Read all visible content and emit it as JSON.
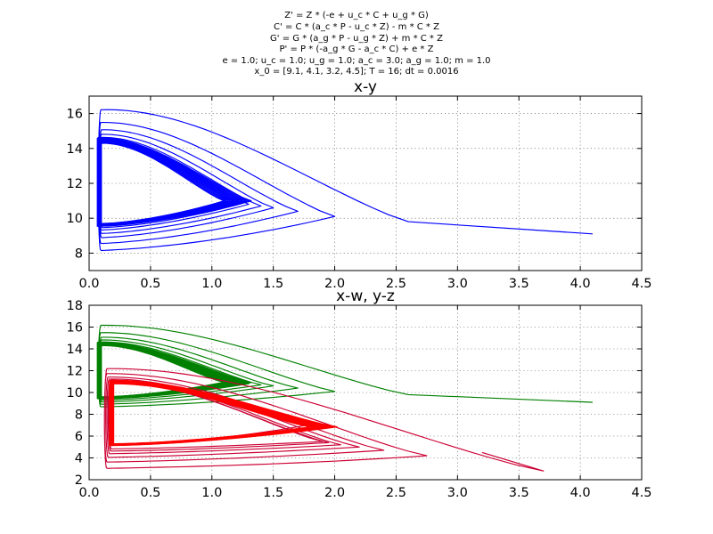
{
  "figure": {
    "equations": [
      "Z' = Z * (-e + u_c * C + u_g * G)",
      "C' = C * (a_c * P - u_c * Z) - m * C * Z",
      "G' = G * (a_g * P - u_g * Z) + m * C * Z",
      "P' = P * (-a_g * G - a_c * C) + e * Z",
      "e = 1.0; u_c = 1.0; u_g = 1.0; a_c = 3.0; a_g = 1.0; m = 1.0",
      "x_0 = [9.1, 4.1, 3.2, 4.5]; T = 16; dt = 0.0016"
    ]
  },
  "chart_data": [
    {
      "type": "line",
      "title": "x-y",
      "xlim": [
        0.0,
        4.5
      ],
      "ylim": [
        7,
        17
      ],
      "xticks": [
        "0.0",
        "0.5",
        "1.0",
        "1.5",
        "2.0",
        "2.5",
        "3.0",
        "3.5",
        "4.0",
        "4.5"
      ],
      "yticks": [
        "8",
        "10",
        "12",
        "14",
        "16"
      ],
      "grid": true,
      "series": [
        {
          "color": "#0000ff",
          "attractor": {
            "x_min": 0.1,
            "x_max": 1.1,
            "y_min": 9.7,
            "y_max": 14.3
          },
          "trajectory": {
            "start": [
              4.1,
              9.1
            ],
            "loops": [
              {
                "x_right": 2.6,
                "y_right": 9.8,
                "x_left": 0.1,
                "y_top": 16.6,
                "y_bottom": 7.9
              },
              {
                "x_right": 2.0,
                "y_right": 10.1,
                "x_left": 0.09,
                "y_top": 15.7,
                "y_bottom": 8.3
              },
              {
                "x_right": 1.7,
                "y_right": 10.4,
                "x_left": 0.1,
                "y_top": 15.2,
                "y_bottom": 8.7
              },
              {
                "x_right": 1.5,
                "y_right": 10.6,
                "x_left": 0.1,
                "y_top": 14.9,
                "y_bottom": 9.0
              },
              {
                "x_right": 1.4,
                "y_right": 10.7,
                "x_left": 0.1,
                "y_top": 14.7,
                "y_bottom": 9.2
              },
              {
                "x_right": 1.3,
                "y_right": 10.8,
                "x_left": 0.1,
                "y_top": 14.55,
                "y_bottom": 9.4
              },
              {
                "x_right": 1.25,
                "y_right": 10.85,
                "x_left": 0.1,
                "y_top": 14.45,
                "y_bottom": 9.5
              },
              {
                "x_right": 1.2,
                "y_right": 10.9,
                "x_left": 0.1,
                "y_top": 14.4,
                "y_bottom": 9.6
              }
            ]
          }
        }
      ]
    },
    {
      "type": "line",
      "title": "x-w, y-z",
      "xlim": [
        0.0,
        4.5
      ],
      "ylim": [
        2,
        18
      ],
      "xticks": [
        "0.0",
        "0.5",
        "1.0",
        "1.5",
        "2.0",
        "2.5",
        "3.0",
        "3.5",
        "4.0",
        "4.5"
      ],
      "yticks": [
        "2",
        "4",
        "6",
        "8",
        "10",
        "12",
        "14",
        "16",
        "18"
      ],
      "grid": true,
      "series": [
        {
          "color": "#008000",
          "attractor": {
            "x_min": 0.1,
            "x_max": 1.1,
            "y_min": 9.6,
            "y_max": 14.3
          },
          "trajectory": {
            "start": [
              4.1,
              9.1
            ],
            "loops": [
              {
                "x_right": 2.6,
                "y_right": 9.8,
                "x_left": 0.1,
                "y_top": 16.5,
                "y_bottom": 8.5
              },
              {
                "x_right": 2.0,
                "y_right": 10.1,
                "x_left": 0.09,
                "y_top": 15.7,
                "y_bottom": 8.8
              },
              {
                "x_right": 1.7,
                "y_right": 10.4,
                "x_left": 0.1,
                "y_top": 15.2,
                "y_bottom": 9.0
              },
              {
                "x_right": 1.5,
                "y_right": 10.6,
                "x_left": 0.1,
                "y_top": 14.9,
                "y_bottom": 9.2
              },
              {
                "x_right": 1.4,
                "y_right": 10.7,
                "x_left": 0.1,
                "y_top": 14.7,
                "y_bottom": 9.35
              },
              {
                "x_right": 1.3,
                "y_right": 10.8,
                "x_left": 0.1,
                "y_top": 14.55,
                "y_bottom": 9.45
              },
              {
                "x_right": 1.25,
                "y_right": 10.85,
                "x_left": 0.1,
                "y_top": 14.45,
                "y_bottom": 9.55
              }
            ]
          }
        },
        {
          "color": "#cc0033",
          "attractor_color": "#ff0000",
          "attractor": {
            "x_min": 0.2,
            "x_max": 1.8,
            "y_min": 5.3,
            "y_max": 10.8
          },
          "trajectory": {
            "start": [
              3.2,
              4.5
            ],
            "loops": [
              {
                "x_right": 3.7,
                "y_right": 2.8,
                "x_left": 0.15,
                "y_top": 12.4,
                "y_bottom": 2.6
              },
              {
                "x_right": 2.75,
                "y_right": 4.2,
                "x_left": 0.14,
                "y_top": 11.9,
                "y_bottom": 3.3
              },
              {
                "x_right": 2.4,
                "y_right": 4.7,
                "x_left": 0.15,
                "y_top": 11.5,
                "y_bottom": 3.8
              },
              {
                "x_right": 2.2,
                "y_right": 5.0,
                "x_left": 0.16,
                "y_top": 11.3,
                "y_bottom": 4.2
              },
              {
                "x_right": 2.05,
                "y_right": 5.2,
                "x_left": 0.17,
                "y_top": 11.15,
                "y_bottom": 4.5
              },
              {
                "x_right": 1.95,
                "y_right": 5.4,
                "x_left": 0.18,
                "y_top": 11.05,
                "y_bottom": 4.7
              },
              {
                "x_right": 1.9,
                "y_right": 5.5,
                "x_left": 0.18,
                "y_top": 11.0,
                "y_bottom": 4.9
              }
            ]
          }
        }
      ]
    }
  ]
}
